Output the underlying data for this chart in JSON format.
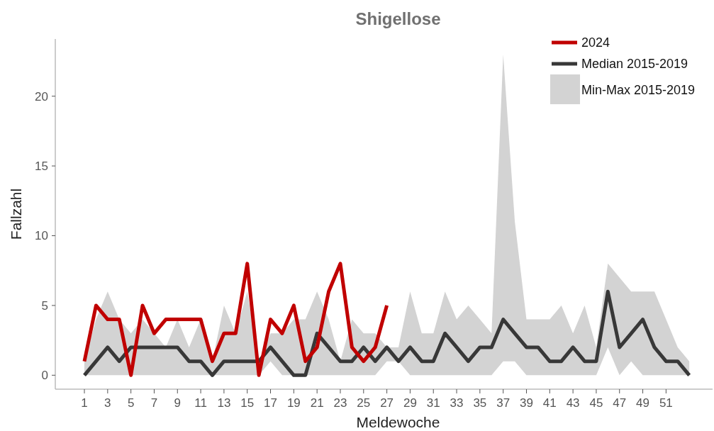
{
  "chart_data": {
    "type": "line",
    "title": "Shigellose",
    "xlabel": "Meldewoche",
    "ylabel": "Fallzahl",
    "x": [
      1,
      2,
      3,
      4,
      5,
      6,
      7,
      8,
      9,
      10,
      11,
      12,
      13,
      14,
      15,
      16,
      17,
      18,
      19,
      20,
      21,
      22,
      23,
      24,
      25,
      26,
      27,
      28,
      29,
      30,
      31,
      32,
      33,
      34,
      35,
      36,
      37,
      38,
      39,
      40,
      41,
      42,
      43,
      44,
      45,
      46,
      47,
      48,
      49,
      50,
      51,
      52,
      53
    ],
    "xlim": [
      -1.5,
      55
    ],
    "xticks": [
      1,
      3,
      5,
      7,
      9,
      11,
      13,
      15,
      17,
      19,
      21,
      23,
      25,
      27,
      29,
      31,
      33,
      35,
      37,
      39,
      41,
      43,
      45,
      47,
      49,
      51
    ],
    "ylim": [
      -1,
      24.1
    ],
    "yticks": [
      0,
      5,
      10,
      15,
      20
    ],
    "legend": "top right",
    "marker": "none",
    "line_style": "solid",
    "annotations": [
      "Min-Max 2015-2019"
    ],
    "series": [
      {
        "name": "Median 2015-2019",
        "color": "#383838",
        "values": [
          0,
          1,
          2,
          1,
          2,
          2,
          2,
          2,
          2,
          1,
          1,
          0,
          1,
          1,
          1,
          1,
          2,
          1,
          0,
          0,
          3,
          2,
          1,
          1,
          2,
          1,
          2,
          1,
          2,
          1,
          1,
          3,
          2,
          1,
          2,
          2,
          4,
          3,
          2,
          2,
          1,
          1,
          2,
          1,
          1,
          6,
          2,
          3,
          4,
          2,
          1,
          1,
          0
        ],
        "lower": [
          0,
          0,
          0,
          0,
          0,
          0,
          0,
          0,
          0,
          0,
          0,
          0,
          0,
          0,
          0,
          0,
          1,
          0,
          0,
          0,
          0,
          0,
          0,
          0,
          0,
          0,
          1,
          1,
          0,
          0,
          0,
          0,
          0,
          0,
          0,
          0,
          1,
          1,
          0,
          0,
          0,
          0,
          0,
          0,
          0,
          2,
          0,
          1,
          0,
          0,
          0,
          0,
          0
        ],
        "upper": [
          1,
          4,
          6,
          4,
          3,
          4,
          3,
          2,
          4,
          2,
          4,
          1,
          5,
          3,
          6,
          1,
          3,
          3,
          4,
          4,
          6,
          4,
          1,
          4,
          3,
          3,
          2,
          2,
          6,
          3,
          3,
          6,
          4,
          5,
          4,
          3,
          23,
          11,
          4,
          4,
          4,
          5,
          3,
          5,
          2,
          8,
          7,
          6,
          6,
          6,
          4,
          2,
          1
        ]
      },
      {
        "name": "2024",
        "color": "#c00000",
        "values": [
          1,
          5,
          4,
          4,
          0,
          5,
          3,
          4,
          4,
          4,
          4,
          1,
          3,
          3,
          8,
          0,
          4,
          3,
          5,
          1,
          2,
          6,
          8,
          2,
          1,
          2,
          5,
          null,
          null,
          null,
          null,
          null,
          null,
          null,
          null,
          null,
          null,
          null,
          null,
          null,
          null,
          null,
          null,
          null,
          null,
          null,
          null,
          null,
          null,
          null,
          null,
          null,
          null
        ]
      }
    ]
  }
}
